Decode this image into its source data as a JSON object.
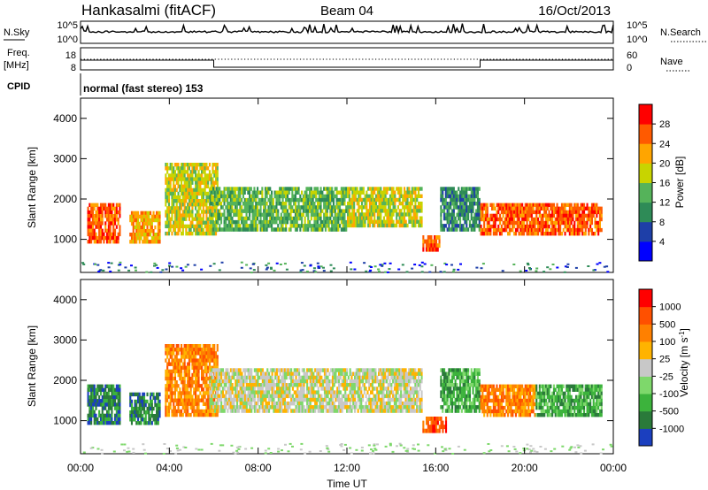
{
  "header": {
    "station": "Hankasalmi (fitACF)",
    "beam": "Beam 04",
    "date": "16/Oct/2013"
  },
  "summary_panels": {
    "nsky_label": "N.Sky",
    "nsky_ticks": [
      "10^5",
      "10^0"
    ],
    "nsearch_label": "N.Search",
    "nsearch_ticks": [
      "10^5",
      "10^0"
    ],
    "freq_label": "Freq.",
    "freq_unit": "[MHz]",
    "freq_ticks": [
      "18",
      "8"
    ],
    "nave_label": "Nave",
    "nave_ticks": [
      "60",
      "0"
    ],
    "cpid_label": "CPID",
    "cpid_value": "normal (fast stereo) 153"
  },
  "colors": {
    "power_scale": [
      "#0000ff",
      "#1e3fa8",
      "#2e8b57",
      "#55b35a",
      "#c8d400",
      "#ffa500",
      "#ff5a00",
      "#ff0000"
    ],
    "velocity_scale": [
      "#1b3fbf",
      "#2a7a3a",
      "#3cb33c",
      "#7ed86b",
      "#c8c8c8",
      "#ffb300",
      "#ff8000",
      "#ff5000",
      "#ff0000"
    ]
  },
  "chart_data": [
    {
      "type": "heatmap",
      "name": "power",
      "ylabel": "Slant Range [km]",
      "xlabel": "Time UT",
      "x_ticks": [
        "00:00",
        "04:00",
        "08:00",
        "12:00",
        "16:00",
        "20:00",
        "00:00"
      ],
      "x_range_hours": [
        0,
        24
      ],
      "y_ticks": [
        "4000",
        "3000",
        "2000",
        "1000"
      ],
      "y_range_km": [
        180,
        4500
      ],
      "colorbar_label": "Power [dB]",
      "colorbar_ticks": [
        "28",
        "24",
        "20",
        "16",
        "12",
        "8",
        "4"
      ],
      "colorbar_range": [
        0,
        32
      ],
      "bands": [
        {
          "t0": 0.3,
          "t1": 1.8,
          "r0": 900,
          "r1": 1900,
          "level": 6
        },
        {
          "t0": 2.2,
          "t1": 3.6,
          "r0": 900,
          "r1": 1700,
          "level": 5
        },
        {
          "t0": 3.8,
          "t1": 6.2,
          "r0": 1100,
          "r1": 2900,
          "level": 4
        },
        {
          "t0": 5.8,
          "t1": 8.5,
          "r0": 1200,
          "r1": 2300,
          "level": 3
        },
        {
          "t0": 8.5,
          "t1": 12.0,
          "r0": 1200,
          "r1": 2300,
          "level": 3
        },
        {
          "t0": 12.0,
          "t1": 15.4,
          "r0": 1300,
          "r1": 2300,
          "level": 4
        },
        {
          "t0": 15.4,
          "t1": 16.2,
          "r0": 700,
          "r1": 1100,
          "level": 6
        },
        {
          "t0": 16.2,
          "t1": 18.0,
          "r0": 1200,
          "r1": 2300,
          "level": 2
        },
        {
          "t0": 18.0,
          "t1": 23.5,
          "r0": 1100,
          "r1": 1900,
          "level": 6
        }
      ]
    },
    {
      "type": "heatmap",
      "name": "velocity",
      "ylabel": "Slant Range [km]",
      "xlabel": "Time UT",
      "x_ticks": [
        "00:00",
        "04:00",
        "08:00",
        "12:00",
        "16:00",
        "20:00",
        "00:00"
      ],
      "x_range_hours": [
        0,
        24
      ],
      "y_ticks": [
        "4000",
        "3000",
        "2000",
        "1000"
      ],
      "y_range_km": [
        180,
        4500
      ],
      "colorbar_label": "Velocity [m s^-1]",
      "colorbar_ticks": [
        "1000",
        "500",
        "100",
        "25",
        "-25",
        "-100",
        "-500",
        "-1000"
      ],
      "bands": [
        {
          "t0": 0.3,
          "t1": 1.8,
          "r0": 900,
          "r1": 1900,
          "level": 1
        },
        {
          "t0": 2.2,
          "t1": 3.6,
          "r0": 900,
          "r1": 1700,
          "level": 1
        },
        {
          "t0": 3.8,
          "t1": 6.2,
          "r0": 1100,
          "r1": 2900,
          "level": 6
        },
        {
          "t0": 5.8,
          "t1": 15.4,
          "r0": 1200,
          "r1": 2300,
          "level": 4
        },
        {
          "t0": 15.4,
          "t1": 16.5,
          "r0": 700,
          "r1": 1100,
          "level": 7
        },
        {
          "t0": 16.2,
          "t1": 18.0,
          "r0": 1200,
          "r1": 2300,
          "level": 2
        },
        {
          "t0": 18.0,
          "t1": 20.5,
          "r0": 1100,
          "r1": 1900,
          "level": 6
        },
        {
          "t0": 20.5,
          "t1": 23.5,
          "r0": 1100,
          "r1": 1900,
          "level": 2
        }
      ]
    }
  ]
}
